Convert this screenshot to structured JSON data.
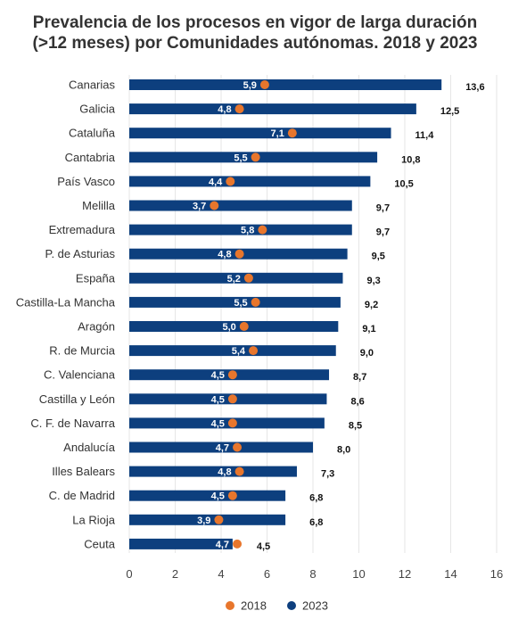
{
  "title_line1": "Prevalencia de los procesos en vigor de larga duración",
  "title_line2": "(>12 meses) por Comunidades autónomas. 2018 y 2023",
  "colors": {
    "bar_2023": "#0d3f7e",
    "dot_2018": "#e8762c",
    "grid": "#e6e6e6"
  },
  "chart_data": {
    "type": "bar",
    "orientation": "horizontal",
    "categories": [
      "Canarias",
      "Galicia",
      "Cataluña",
      "Cantabria",
      "País Vasco",
      "Melilla",
      "Extremadura",
      "P. de Asturias",
      "España",
      "Castilla-La Mancha",
      "Aragón",
      "R. de Murcia",
      "C. Valenciana",
      "Castilla y León",
      "C. F. de Navarra",
      "Andalucía",
      "Illes Balears",
      "C. de Madrid",
      "La Rioja",
      "Ceuta"
    ],
    "series": [
      {
        "name": "2018",
        "mark": "dot",
        "values": [
          5.9,
          4.8,
          7.1,
          5.5,
          4.4,
          3.7,
          5.8,
          4.8,
          5.2,
          5.5,
          5.0,
          5.4,
          4.5,
          4.5,
          4.5,
          4.7,
          4.8,
          4.5,
          3.9,
          4.7
        ],
        "labels": [
          "5,9",
          "4,8",
          "7,1",
          "5,5",
          "4,4",
          "3,7",
          "5,8",
          "4,8",
          "5,2",
          "5,5",
          "5,0",
          "5,4",
          "4,5",
          "4,5",
          "4,5",
          "4,7",
          "4,8",
          "4,5",
          "3,9",
          "4,7"
        ]
      },
      {
        "name": "2023",
        "mark": "bar",
        "values": [
          13.6,
          12.5,
          11.4,
          10.8,
          10.5,
          9.7,
          9.7,
          9.5,
          9.3,
          9.2,
          9.1,
          9.0,
          8.7,
          8.6,
          8.5,
          8.0,
          7.3,
          6.8,
          6.8,
          4.5
        ],
        "labels": [
          "13,6",
          "12,5",
          "11,4",
          "10,8",
          "10,5",
          "9,7",
          "9,7",
          "9,5",
          "9,3",
          "9,2",
          "9,1",
          "9,0",
          "8,7",
          "8,6",
          "8,5",
          "8,0",
          "7,3",
          "6,8",
          "6,8",
          "4,5"
        ]
      }
    ],
    "xlim": [
      0,
      16
    ],
    "xticks": [
      0,
      2,
      4,
      6,
      8,
      10,
      12,
      14,
      16
    ],
    "grid": "vertical",
    "legend": "bottom-center",
    "legend_items": [
      "2018",
      "2023"
    ]
  }
}
